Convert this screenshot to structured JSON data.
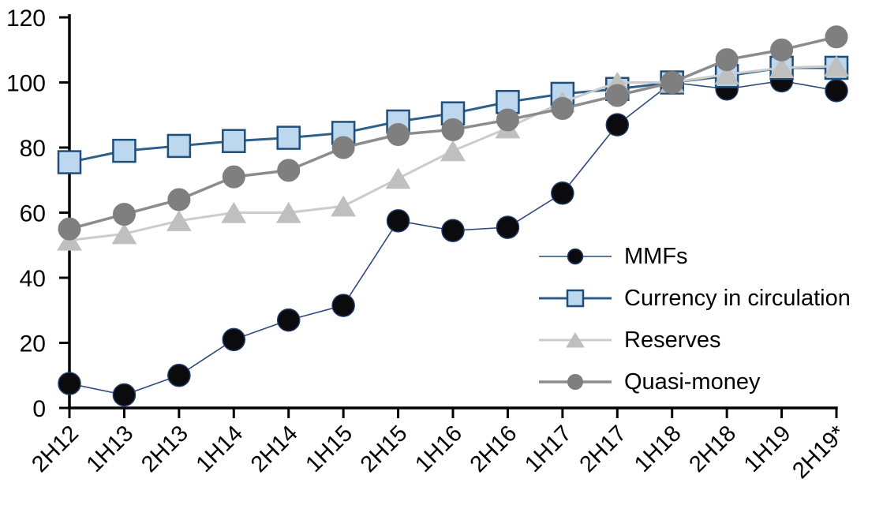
{
  "background": "#FFFFFF",
  "axis_color": "#000000",
  "text_color": "#000000",
  "chart_data": {
    "type": "line",
    "title": "",
    "xlabel": "",
    "ylabel": "",
    "ylim": [
      0,
      120
    ],
    "yticks": [
      0,
      20,
      40,
      60,
      80,
      100,
      120
    ],
    "grid": false,
    "legend_position": "inside-right",
    "categories": [
      "2H12",
      "1H13",
      "2H13",
      "1H14",
      "2H14",
      "1H15",
      "2H15",
      "1H16",
      "2H16",
      "1H17",
      "2H17",
      "1H18",
      "2H18",
      "1H19",
      "2H19*"
    ],
    "series": [
      {
        "name": "MMFs",
        "marker": "circle",
        "values": [
          7.5,
          4,
          10,
          21,
          27,
          31.5,
          57.5,
          54.5,
          55.5,
          66,
          87,
          100,
          98,
          100.5,
          97.5
        ],
        "line_color": "#2F4B7C",
        "line_width": 1.6,
        "marker_fill": "#0B0B0D",
        "marker_stroke": "#1F3864",
        "marker_stroke_width": 1.5,
        "marker_size": 28
      },
      {
        "name": "Currency in circulation",
        "marker": "square",
        "values": [
          75.5,
          79,
          80.5,
          82,
          83,
          84.5,
          88,
          90.5,
          94,
          96.5,
          98,
          100,
          102,
          104.5,
          104.5
        ],
        "line_color": "#2E5F8A",
        "line_width": 3,
        "marker_fill": "#BDD7EE",
        "marker_stroke": "#1F4E79",
        "marker_stroke_width": 2.5,
        "marker_size": 28
      },
      {
        "name": "Reserves",
        "marker": "triangle",
        "values": [
          51.5,
          53.5,
          57.5,
          60,
          60,
          62,
          70.5,
          79,
          86,
          94,
          100,
          100,
          102.5,
          104.5,
          105
        ],
        "line_color": "#CCCCCC",
        "line_width": 3,
        "marker_fill": "#BFBFBF",
        "marker_stroke": "#BFBFBF",
        "marker_stroke_width": 1,
        "marker_size": 30
      },
      {
        "name": "Quasi-money",
        "marker": "circle",
        "values": [
          55,
          59.5,
          64,
          71,
          73,
          80,
          84,
          85.5,
          88.5,
          92,
          96,
          100,
          107,
          110,
          114
        ],
        "line_color": "#8C8C8C",
        "line_width": 3.5,
        "marker_fill": "#7F7F7F",
        "marker_stroke": "#7F7F7F",
        "marker_stroke_width": 1,
        "marker_size": 28
      }
    ]
  }
}
